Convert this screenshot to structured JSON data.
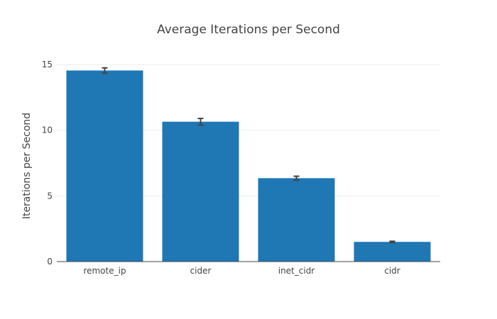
{
  "chart_data": {
    "type": "bar",
    "title": "Average Iterations per Second",
    "xlabel": "",
    "ylabel": "Iterations per Second",
    "categories": [
      "remote_ip",
      "cider",
      "inet_cidr",
      "cidr"
    ],
    "values": [
      14.55,
      10.65,
      6.35,
      1.5
    ],
    "error": [
      0.2,
      0.25,
      0.15,
      0.05
    ],
    "ylim": [
      0,
      15.6
    ],
    "yticks": [
      0,
      5,
      10,
      15
    ],
    "grid": true,
    "legend": "none",
    "colors": {
      "bar": "#1f77b4",
      "error_bar": "#444444",
      "grid": "#eeeeee",
      "axis": "#444444"
    }
  }
}
